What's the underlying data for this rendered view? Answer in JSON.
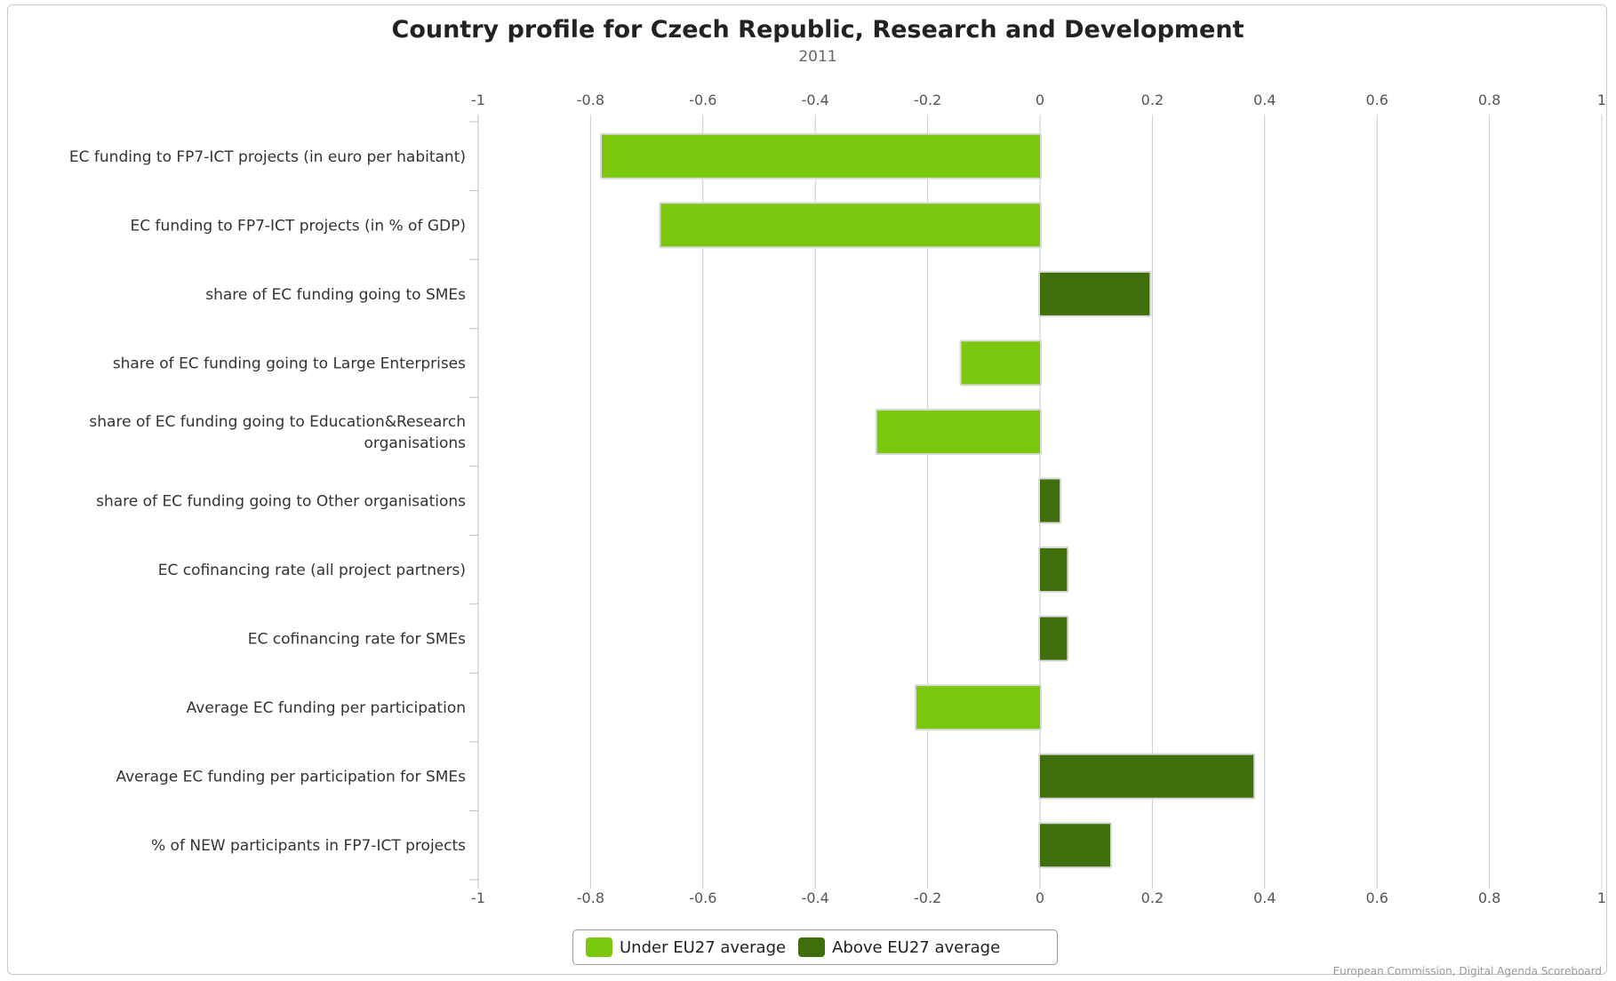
{
  "chart_data": {
    "type": "bar",
    "orientation": "horizontal",
    "title": "Country profile for Czech Republic, Research and Development",
    "subtitle": "2011",
    "xlim": [
      -1,
      1
    ],
    "x_ticks": [
      "-1",
      "-0.8",
      "-0.6",
      "-0.4",
      "-0.2",
      "0",
      "0.2",
      "0.4",
      "0.6",
      "0.8",
      "1"
    ],
    "grid": true,
    "legend_position": "bottom-center",
    "categories": [
      "EC funding to FP7-ICT projects (in euro per habitant)",
      "EC funding to FP7-ICT projects (in % of GDP)",
      "share of EC funding going to SMEs",
      "share of EC funding going to Large Enterprises",
      "share of EC funding going to Education&Research organisations",
      "share of EC funding going to Other organisations",
      "EC cofinancing rate (all project partners)",
      "EC cofinancing rate for SMEs",
      "Average EC funding per participation",
      "Average EC funding per participation for SMEs",
      "% of NEW participants in FP7-ICT projects"
    ],
    "category_label_lines": [
      [
        "EC funding to FP7-ICT projects (in euro per habitant)"
      ],
      [
        "EC funding to FP7-ICT projects (in % of GDP)"
      ],
      [
        "share of EC funding going to SMEs"
      ],
      [
        "share of EC funding going to Large Enterprises"
      ],
      [
        "share of EC funding going to Education&Research",
        "organisations"
      ],
      [
        "share of EC funding going to Other organisations"
      ],
      [
        "EC cofinancing rate (all project partners)"
      ],
      [
        "EC cofinancing rate for SMEs"
      ],
      [
        "Average EC funding per participation"
      ],
      [
        "Average EC funding per participation for SMEs"
      ],
      [
        "% of NEW participants in FP7-ICT projects"
      ]
    ],
    "values": [
      -0.78,
      -0.675,
      0.195,
      -0.14,
      -0.29,
      0.035,
      0.048,
      0.048,
      -0.22,
      0.38,
      0.125
    ],
    "series": [
      {
        "name": "Under EU27 average",
        "color": "#7ac70e",
        "condition": "value < 0"
      },
      {
        "name": "Above EU27 average",
        "color": "#3f6e0c",
        "condition": "value >= 0"
      }
    ],
    "colors": {
      "grid": "#cccccc",
      "tick_mark": "#c0c0c0",
      "bar_border": "#d9d9d9"
    }
  },
  "legend": {
    "under_label": "Under EU27 average",
    "above_label": "Above EU27 average",
    "under_color": "#7ac70e",
    "above_color": "#3f6e0c"
  },
  "source": "European Commission, Digital Agenda Scoreboard"
}
